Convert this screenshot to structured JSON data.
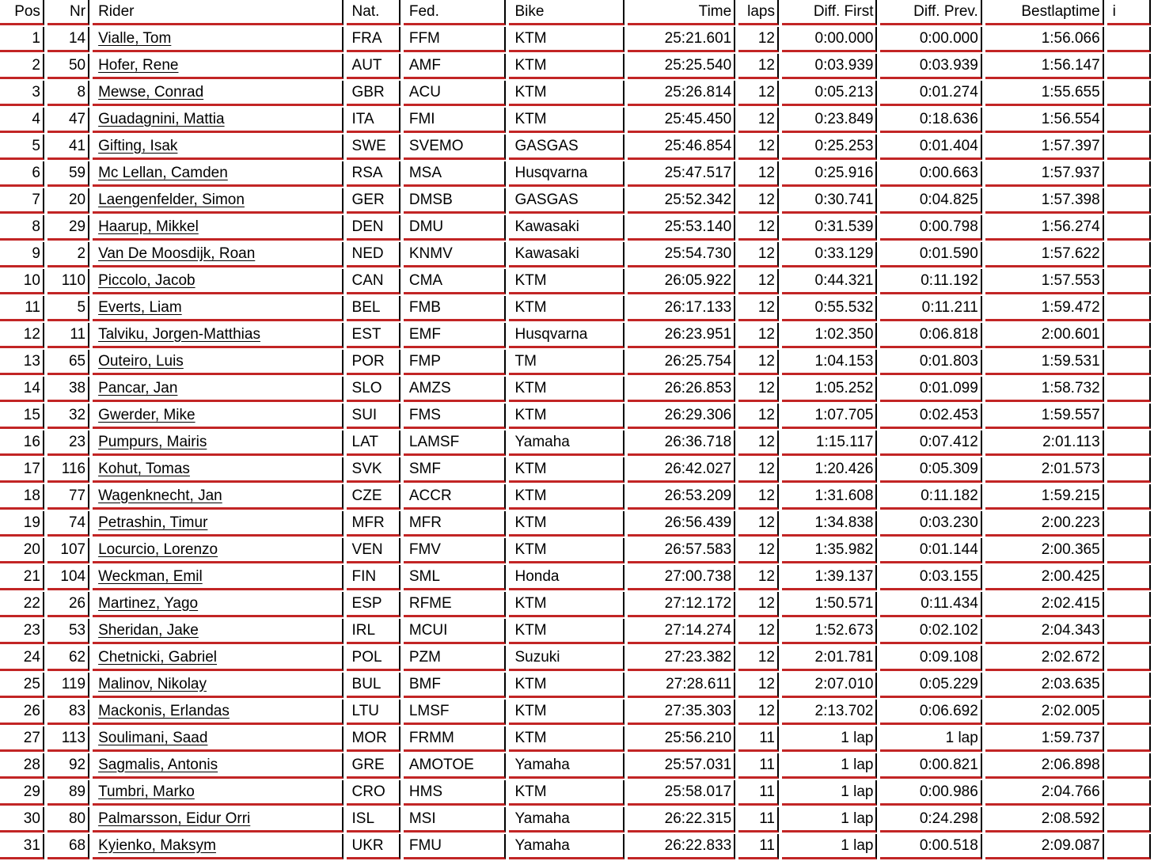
{
  "colors": {
    "rule_red": "#c22525",
    "rule_black": "#000000",
    "text": "#000000",
    "background": "#ffffff"
  },
  "table": {
    "columns": [
      {
        "label": "Pos"
      },
      {
        "label": "Nr"
      },
      {
        "label": "Rider"
      },
      {
        "label": "Nat."
      },
      {
        "label": "Fed."
      },
      {
        "label": "Bike"
      },
      {
        "label": "Time"
      },
      {
        "label": "laps"
      },
      {
        "label": "Diff. First"
      },
      {
        "label": "Diff. Prev."
      },
      {
        "label": "Bestlaptime"
      },
      {
        "label": "i"
      }
    ],
    "rows": [
      {
        "cells": [
          "1",
          "14",
          "Vialle, Tom",
          "FRA",
          "FFM",
          "KTM",
          "25:21.601",
          "12",
          "0:00.000",
          "0:00.000",
          "1:56.066",
          ""
        ]
      },
      {
        "cells": [
          "2",
          "50",
          "Hofer, Rene",
          "AUT",
          "AMF",
          "KTM",
          "25:25.540",
          "12",
          "0:03.939",
          "0:03.939",
          "1:56.147",
          ""
        ]
      },
      {
        "cells": [
          "3",
          "8",
          "Mewse, Conrad",
          "GBR",
          "ACU",
          "KTM",
          "25:26.814",
          "12",
          "0:05.213",
          "0:01.274",
          "1:55.655",
          ""
        ]
      },
      {
        "cells": [
          "4",
          "47",
          "Guadagnini, Mattia",
          "ITA",
          "FMI",
          "KTM",
          "25:45.450",
          "12",
          "0:23.849",
          "0:18.636",
          "1:56.554",
          ""
        ]
      },
      {
        "cells": [
          "5",
          "41",
          "Gifting, Isak",
          "SWE",
          "SVEMO",
          "GASGAS",
          "25:46.854",
          "12",
          "0:25.253",
          "0:01.404",
          "1:57.397",
          ""
        ]
      },
      {
        "cells": [
          "6",
          "59",
          "Mc Lellan, Camden",
          "RSA",
          "MSA",
          "Husqvarna",
          "25:47.517",
          "12",
          "0:25.916",
          "0:00.663",
          "1:57.937",
          ""
        ]
      },
      {
        "cells": [
          "7",
          "20",
          "Laengenfelder, Simon",
          "GER",
          "DMSB",
          "GASGAS",
          "25:52.342",
          "12",
          "0:30.741",
          "0:04.825",
          "1:57.398",
          ""
        ]
      },
      {
        "cells": [
          "8",
          "29",
          "Haarup, Mikkel",
          "DEN",
          "DMU",
          "Kawasaki",
          "25:53.140",
          "12",
          "0:31.539",
          "0:00.798",
          "1:56.274",
          ""
        ]
      },
      {
        "cells": [
          "9",
          "2",
          "Van De Moosdijk, Roan",
          "NED",
          "KNMV",
          "Kawasaki",
          "25:54.730",
          "12",
          "0:33.129",
          "0:01.590",
          "1:57.622",
          ""
        ]
      },
      {
        "cells": [
          "10",
          "110",
          "Piccolo, Jacob",
          "CAN",
          "CMA",
          "KTM",
          "26:05.922",
          "12",
          "0:44.321",
          "0:11.192",
          "1:57.553",
          ""
        ]
      },
      {
        "cells": [
          "11",
          "5",
          "Everts, Liam",
          "BEL",
          "FMB",
          "KTM",
          "26:17.133",
          "12",
          "0:55.532",
          "0:11.211",
          "1:59.472",
          ""
        ]
      },
      {
        "cells": [
          "12",
          "11",
          "Talviku, Jorgen-Matthias",
          "EST",
          "EMF",
          "Husqvarna",
          "26:23.951",
          "12",
          "1:02.350",
          "0:06.818",
          "2:00.601",
          ""
        ]
      },
      {
        "cells": [
          "13",
          "65",
          "Outeiro, Luis",
          "POR",
          "FMP",
          "TM",
          "26:25.754",
          "12",
          "1:04.153",
          "0:01.803",
          "1:59.531",
          ""
        ]
      },
      {
        "cells": [
          "14",
          "38",
          "Pancar, Jan",
          "SLO",
          "AMZS",
          "KTM",
          "26:26.853",
          "12",
          "1:05.252",
          "0:01.099",
          "1:58.732",
          ""
        ]
      },
      {
        "cells": [
          "15",
          "32",
          "Gwerder, Mike",
          "SUI",
          "FMS",
          "KTM",
          "26:29.306",
          "12",
          "1:07.705",
          "0:02.453",
          "1:59.557",
          ""
        ]
      },
      {
        "cells": [
          "16",
          "23",
          "Pumpurs, Mairis",
          "LAT",
          "LAMSF",
          "Yamaha",
          "26:36.718",
          "12",
          "1:15.117",
          "0:07.412",
          "2:01.113",
          ""
        ]
      },
      {
        "cells": [
          "17",
          "116",
          "Kohut, Tomas",
          "SVK",
          "SMF",
          "KTM",
          "26:42.027",
          "12",
          "1:20.426",
          "0:05.309",
          "2:01.573",
          ""
        ]
      },
      {
        "cells": [
          "18",
          "77",
          "Wagenknecht, Jan",
          "CZE",
          "ACCR",
          "KTM",
          "26:53.209",
          "12",
          "1:31.608",
          "0:11.182",
          "1:59.215",
          ""
        ]
      },
      {
        "cells": [
          "19",
          "74",
          "Petrashin, Timur",
          "MFR",
          "MFR",
          "KTM",
          "26:56.439",
          "12",
          "1:34.838",
          "0:03.230",
          "2:00.223",
          ""
        ]
      },
      {
        "cells": [
          "20",
          "107",
          "Locurcio, Lorenzo",
          "VEN",
          "FMV",
          "KTM",
          "26:57.583",
          "12",
          "1:35.982",
          "0:01.144",
          "2:00.365",
          ""
        ]
      },
      {
        "cells": [
          "21",
          "104",
          "Weckman, Emil",
          "FIN",
          "SML",
          "Honda",
          "27:00.738",
          "12",
          "1:39.137",
          "0:03.155",
          "2:00.425",
          ""
        ]
      },
      {
        "cells": [
          "22",
          "26",
          "Martinez, Yago",
          "ESP",
          "RFME",
          "KTM",
          "27:12.172",
          "12",
          "1:50.571",
          "0:11.434",
          "2:02.415",
          ""
        ]
      },
      {
        "cells": [
          "23",
          "53",
          "Sheridan, Jake",
          "IRL",
          "MCUI",
          "KTM",
          "27:14.274",
          "12",
          "1:52.673",
          "0:02.102",
          "2:04.343",
          ""
        ]
      },
      {
        "cells": [
          "24",
          "62",
          "Chetnicki, Gabriel",
          "POL",
          "PZM",
          "Suzuki",
          "27:23.382",
          "12",
          "2:01.781",
          "0:09.108",
          "2:02.672",
          ""
        ]
      },
      {
        "cells": [
          "25",
          "119",
          "Malinov, Nikolay",
          "BUL",
          "BMF",
          "KTM",
          "27:28.611",
          "12",
          "2:07.010",
          "0:05.229",
          "2:03.635",
          ""
        ]
      },
      {
        "cells": [
          "26",
          "83",
          "Mackonis, Erlandas",
          "LTU",
          "LMSF",
          "KTM",
          "27:35.303",
          "12",
          "2:13.702",
          "0:06.692",
          "2:02.005",
          ""
        ]
      },
      {
        "cells": [
          "27",
          "113",
          "Soulimani, Saad",
          "MOR",
          "FRMM",
          "KTM",
          "25:56.210",
          "11",
          "1 lap",
          "1 lap",
          "1:59.737",
          ""
        ]
      },
      {
        "cells": [
          "28",
          "92",
          "Sagmalis, Antonis",
          "GRE",
          "AMOTOE",
          "Yamaha",
          "25:57.031",
          "11",
          "1 lap",
          "0:00.821",
          "2:06.898",
          ""
        ]
      },
      {
        "cells": [
          "29",
          "89",
          "Tumbri, Marko",
          "CRO",
          "HMS",
          "KTM",
          "25:58.017",
          "11",
          "1 lap",
          "0:00.986",
          "2:04.766",
          ""
        ]
      },
      {
        "cells": [
          "30",
          "80",
          "Palmarsson, Eidur Orri",
          "ISL",
          "MSI",
          "Yamaha",
          "26:22.315",
          "11",
          "1 lap",
          "0:24.298",
          "2:08.592",
          ""
        ]
      },
      {
        "cells": [
          "31",
          "68",
          "Kyienko, Maksym",
          "UKR",
          "FMU",
          "Yamaha",
          "26:22.833",
          "11",
          "1 lap",
          "0:00.518",
          "2:09.087",
          ""
        ]
      }
    ]
  }
}
